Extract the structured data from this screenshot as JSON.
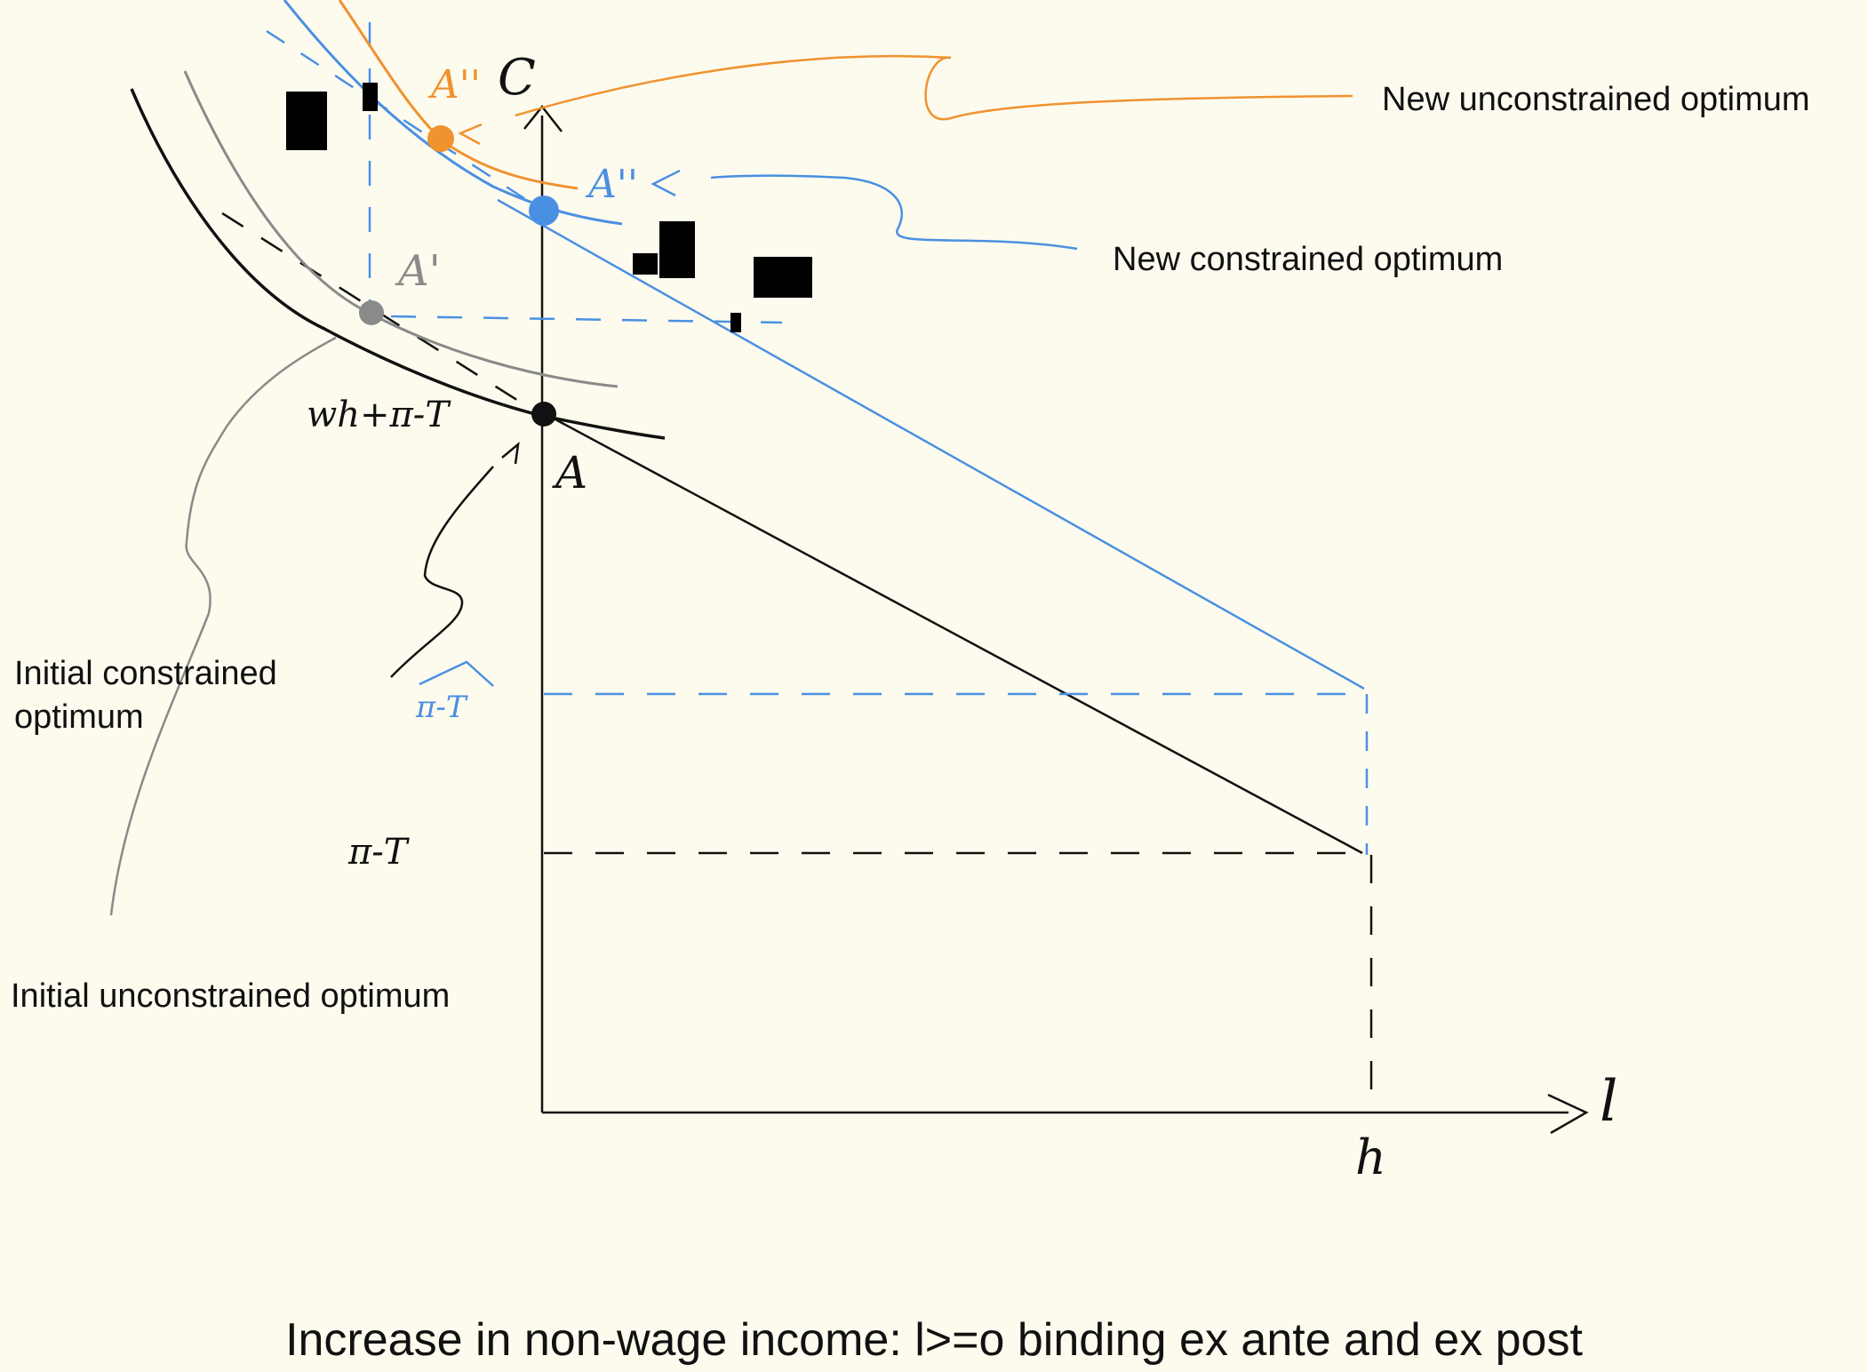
{
  "caption": "Increase in non-wage income: l>=o binding ex ante and ex post",
  "annotations": {
    "new_unconstrained": "New unconstrained optimum",
    "new_constrained": "New constrained optimum",
    "initial_constrained": "Initial constrained\noptimum",
    "initial_unconstrained": "Initial unconstrained optimum"
  },
  "axis_labels": {
    "y": "C",
    "x": "l",
    "h_tick": "h",
    "wh_label": "wh+π-T",
    "pi_T_label": "π-T",
    "new_pi_T_label": "π-T"
  },
  "points": {
    "A": "A",
    "A_prime": "A'",
    "A_double_prime_orange": "A''",
    "A_double_prime_blue": "A''"
  },
  "colors": {
    "background": "#fdfbee",
    "black": "#111111",
    "gray": "#8a8a8a",
    "blue": "#4a90e2",
    "orange": "#f0922e"
  }
}
